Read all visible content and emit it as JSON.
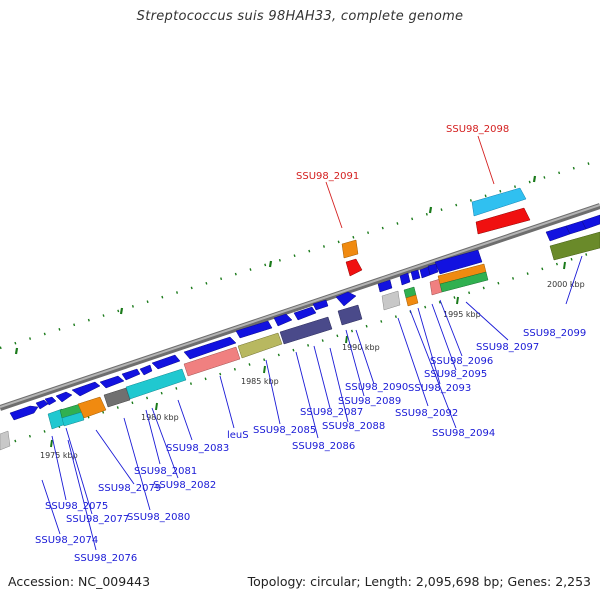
{
  "header": {
    "title": "Streptococcus suis 98HAH33, complete genome"
  },
  "footer": {
    "accession": "Accession: NC_009443",
    "topology": "Topology: circular; Length: 2,095,698 bp; Genes: 2,253"
  },
  "ruler": {
    "ticks": [
      "1975 kbp",
      "1980 kbp",
      "1985 kbp",
      "1990 kbp",
      "1995 kbp",
      "2000 kbp"
    ]
  },
  "genes": {
    "highlighted": [
      "SSU98_2098",
      "SSU98_2091"
    ],
    "labels": [
      "SSU98_2099",
      "SSU98_2097",
      "SSU98_2096",
      "SSU98_2095",
      "SSU98_2093",
      "SSU98_2092",
      "SSU98_2094",
      "SSU98_2090",
      "SSU98_2089",
      "SSU98_2088",
      "SSU98_2087",
      "SSU98_2086",
      "SSU98_2085",
      "leuS",
      "SSU98_2083",
      "SSU98_2081",
      "SSU98_2082",
      "SSU98_2079",
      "SSU98_2080",
      "SSU98_2075",
      "SSU98_2077",
      "SSU98_2074",
      "SSU98_2076"
    ]
  },
  "colors": {
    "forward_gene": "#1010e6",
    "label_normal": "#1a1ad6",
    "label_highlight": "#d42020",
    "backbone": "#8a8a8a",
    "tick_green": "#1a7a1a"
  }
}
